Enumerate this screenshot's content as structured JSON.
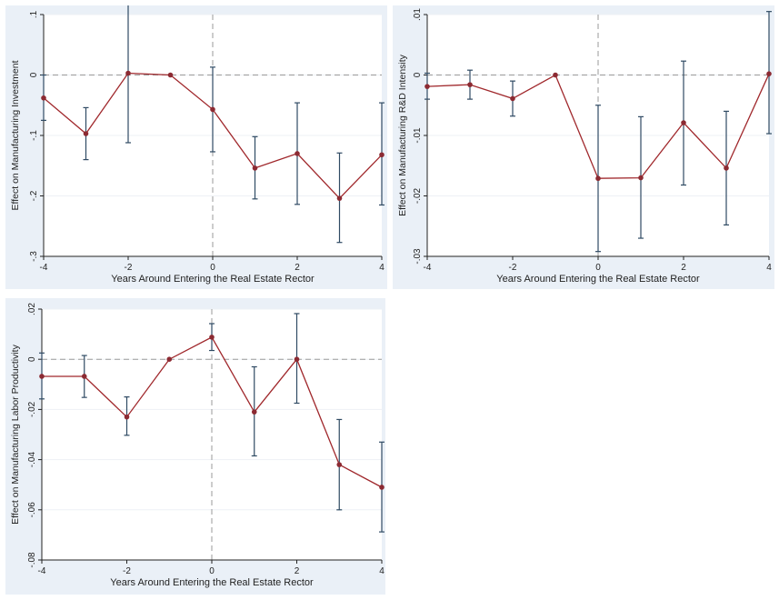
{
  "colors": {
    "panel_background": "#eaf0f7",
    "plot_background": "#ffffff",
    "line": "#a0282c",
    "marker": "#8c2a32",
    "error_bar": "#2f4a63",
    "reference_line": "#9a9a9a",
    "grid": "#eef1f5"
  },
  "chart_data": [
    {
      "type": "line",
      "xlabel": "Years Around Entering the Real Estate Rector",
      "ylabel": "Effect on Manufacturing Investment",
      "xlim": [
        -4,
        4
      ],
      "ylim": [
        -0.3,
        0.1
      ],
      "x_ticks": [
        -4,
        -2,
        0,
        2,
        4
      ],
      "x_tick_labels": [
        "-4",
        "-2",
        "0",
        "2",
        "4"
      ],
      "y_ticks": [
        -0.3,
        -0.2,
        -0.1,
        0,
        0.1
      ],
      "y_tick_labels": [
        "-.3",
        "-.2",
        "-.1",
        "0",
        ".1"
      ],
      "grid": true,
      "reference_lines": {
        "y": 0,
        "x": 0
      },
      "x": [
        -4,
        -3,
        -2,
        -1,
        0,
        1,
        2,
        3,
        4
      ],
      "y": [
        -0.038,
        -0.097,
        0.003,
        0.0,
        -0.057,
        -0.154,
        -0.13,
        -0.204,
        -0.132
      ],
      "ci_low": [
        -0.075,
        -0.14,
        -0.112,
        0.0,
        -0.127,
        -0.205,
        -0.214,
        -0.277,
        -0.215
      ],
      "ci_high": [
        0.0,
        -0.054,
        0.12,
        0.0,
        0.013,
        -0.102,
        -0.046,
        -0.129,
        -0.046
      ]
    },
    {
      "type": "line",
      "xlabel": "Years Around Entering the Real Estate Rector",
      "ylabel": "Effect on Manufacturing R&D Intensity",
      "xlim": [
        -4,
        4
      ],
      "ylim": [
        -0.03,
        0.01
      ],
      "x_ticks": [
        -4,
        -2,
        0,
        2,
        4
      ],
      "x_tick_labels": [
        "-4",
        "-2",
        "0",
        "2",
        "4"
      ],
      "y_ticks": [
        -0.03,
        -0.02,
        -0.01,
        0,
        0.01
      ],
      "y_tick_labels": [
        "-.03",
        "-.02",
        "-.01",
        "0",
        ".01"
      ],
      "grid": true,
      "reference_lines": {
        "y": 0,
        "x": 0
      },
      "x": [
        -4,
        -3,
        -2,
        -1,
        0,
        1,
        2,
        3,
        4
      ],
      "y": [
        -0.0019,
        -0.0016,
        -0.0039,
        0.0,
        -0.0171,
        -0.017,
        -0.0079,
        -0.0154,
        0.0002
      ],
      "ci_low": [
        -0.004,
        -0.004,
        -0.0068,
        0.0,
        -0.0292,
        -0.027,
        -0.0182,
        -0.0248,
        -0.0097
      ],
      "ci_high": [
        0.0003,
        0.0008,
        -0.001,
        0.0,
        -0.005,
        -0.0069,
        0.0023,
        -0.006,
        0.0105
      ]
    },
    {
      "type": "line",
      "xlabel": "Years Around Entering the Real Estate Rector",
      "ylabel": "Effect on Manufacturing Labor Productivity",
      "xlim": [
        -4,
        4
      ],
      "ylim": [
        -0.08,
        0.02
      ],
      "x_ticks": [
        -4,
        -2,
        0,
        2,
        4
      ],
      "x_tick_labels": [
        "-4",
        "-2",
        "0",
        "2",
        "4"
      ],
      "y_ticks": [
        -0.08,
        -0.06,
        -0.04,
        -0.02,
        0,
        0.02
      ],
      "y_tick_labels": [
        "-.08",
        "-.06",
        "-.04",
        "-.02",
        "0",
        ".02"
      ],
      "grid": true,
      "reference_lines": {
        "y": 0,
        "x": 0
      },
      "x": [
        -4,
        -3,
        -2,
        -1,
        0,
        1,
        2,
        3,
        4
      ],
      "y": [
        -0.0068,
        -0.0068,
        -0.023,
        0.0,
        0.0088,
        -0.021,
        0.0,
        -0.042,
        -0.051
      ],
      "ci_low": [
        -0.0158,
        -0.0152,
        -0.0303,
        0.0,
        0.0035,
        -0.0385,
        -0.0175,
        -0.06,
        -0.0688
      ],
      "ci_high": [
        0.0025,
        0.0015,
        -0.015,
        0.0,
        0.0142,
        -0.003,
        0.0182,
        -0.024,
        -0.033
      ]
    }
  ]
}
